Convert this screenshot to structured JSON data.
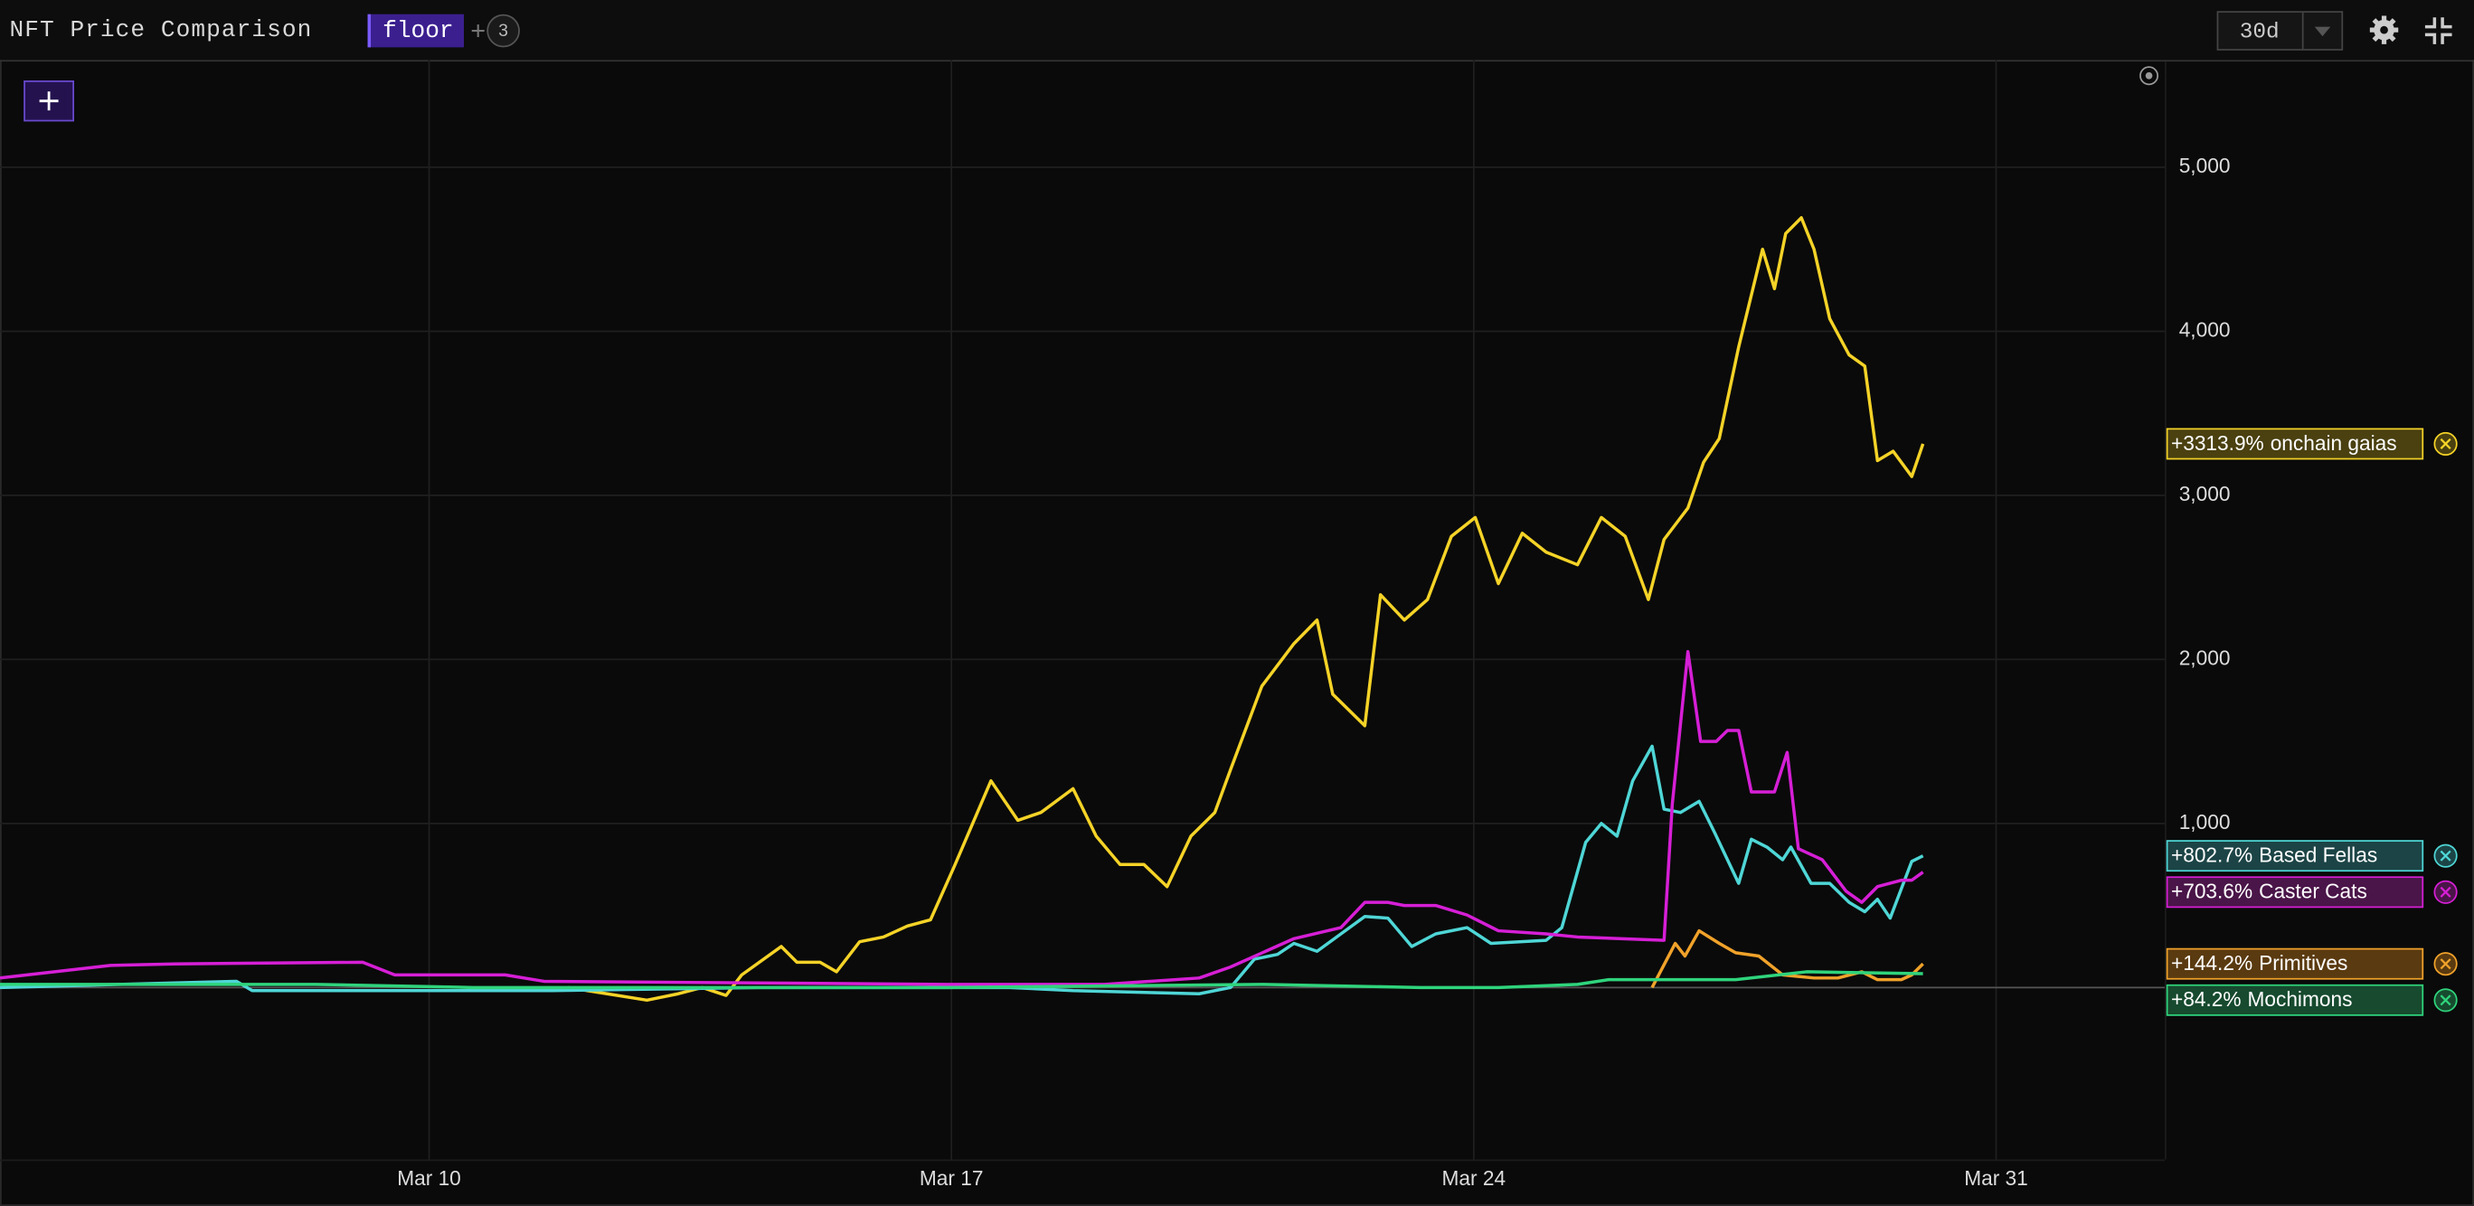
{
  "toolbar": {
    "title": "NFT Price Comparison",
    "metric": "floor",
    "count": 3,
    "range": "30d"
  },
  "chart_data": {
    "type": "line",
    "xlim": [
      4.25,
      33.26
    ],
    "ylim": [
      -1048,
      5654
    ],
    "xticks": [
      {
        "value": 10,
        "label": "Mar 10"
      },
      {
        "value": 17,
        "label": "Mar 17"
      },
      {
        "value": 24,
        "label": "Mar 24"
      },
      {
        "value": 31,
        "label": "Mar 31"
      }
    ],
    "yticks": [
      {
        "value": 1000,
        "label": "1,000"
      },
      {
        "value": 2000,
        "label": "2,000"
      },
      {
        "value": 3000,
        "label": "3,000"
      },
      {
        "value": 4000,
        "label": "4,000"
      },
      {
        "value": 5000,
        "label": "5,000"
      }
    ],
    "grid": true,
    "series": [
      {
        "name": "onchain gaias",
        "color": "#f5d327",
        "box": "#4a4010",
        "x": [
          11.86,
          12.92,
          13.34,
          13.66,
          13.98,
          14.19,
          14.72,
          14.93,
          15.24,
          15.46,
          15.77,
          16.09,
          16.41,
          16.72,
          17.04,
          17.53,
          17.89,
          18.2,
          18.63,
          18.94,
          19.26,
          19.58,
          19.89,
          20.21,
          20.53,
          20.74,
          21.16,
          21.59,
          21.9,
          22.11,
          22.54,
          22.75,
          23.07,
          23.38,
          23.7,
          24.02,
          24.33,
          24.65,
          24.97,
          25.39,
          25.71,
          26.03,
          26.34,
          26.55,
          26.87,
          27.08,
          27.29,
          27.55,
          27.87,
          28.03,
          28.18,
          28.39,
          28.56,
          28.77,
          29.03,
          29.24,
          29.41,
          29.62,
          29.87,
          30.02
        ],
        "values": [
          0,
          -77,
          -38,
          0,
          -48,
          77,
          250,
          154,
          154,
          96,
          279,
          308,
          375,
          413,
          740,
          1260,
          1019,
          1067,
          1212,
          923,
          750,
          750,
          615,
          923,
          1067,
          1327,
          1837,
          2096,
          2240,
          1788,
          1596,
          2394,
          2240,
          2365,
          2750,
          2865,
          2462,
          2769,
          2654,
          2577,
          2865,
          2750,
          2365,
          2731,
          2923,
          3202,
          3346,
          3904,
          4500,
          4260,
          4596,
          4692,
          4500,
          4077,
          3856,
          3788,
          3212,
          3269,
          3115,
          3313.9
        ],
        "value_labels": [
          null,
          null,
          null,
          null,
          null,
          null,
          null,
          null,
          null,
          null,
          null,
          null,
          null,
          null,
          null,
          null,
          null,
          null,
          null,
          null,
          null,
          null,
          null,
          null,
          null,
          null,
          null,
          null,
          null,
          null,
          null,
          null,
          null,
          null,
          null,
          null,
          null,
          null,
          null,
          null,
          null,
          null,
          null,
          null,
          null,
          null,
          null,
          null,
          null,
          null,
          null,
          null,
          null,
          null,
          null,
          null,
          null,
          null,
          null,
          "+3313.9%"
        ]
      },
      {
        "name": "Based Fellas",
        "color": "#4fd6d6",
        "box": "#1c4446",
        "x": [
          4.25,
          7.42,
          7.63,
          11.65,
          14.4,
          17.78,
          18.63,
          20.32,
          20.74,
          21.06,
          21.37,
          21.59,
          21.9,
          22.22,
          22.54,
          22.85,
          23.17,
          23.49,
          23.91,
          24.23,
          24.97,
          25.18,
          25.5,
          25.71,
          25.92,
          26.13,
          26.39,
          26.55,
          26.77,
          27.02,
          27.23,
          27.55,
          27.72,
          27.93,
          28.14,
          28.25,
          28.52,
          28.77,
          29.03,
          29.24,
          29.41,
          29.58,
          29.87,
          30.02
        ],
        "values": [
          0,
          38,
          -19,
          -19,
          0,
          0,
          -19,
          -38,
          0,
          173,
          202,
          269,
          221,
          327,
          433,
          423,
          250,
          327,
          365,
          269,
          288,
          365,
          885,
          1000,
          923,
          1260,
          1471,
          1087,
          1067,
          1135,
          942,
          635,
          904,
          856,
          779,
          856,
          635,
          635,
          519,
          462,
          538,
          423,
          769,
          802.7
        ],
        "value_labels": [
          null,
          null,
          null,
          null,
          null,
          null,
          null,
          null,
          null,
          null,
          null,
          null,
          null,
          null,
          null,
          null,
          null,
          null,
          null,
          null,
          null,
          null,
          null,
          null,
          null,
          null,
          null,
          null,
          null,
          null,
          null,
          null,
          null,
          null,
          null,
          null,
          null,
          null,
          null,
          null,
          null,
          null,
          null,
          "+802.7%"
        ]
      },
      {
        "name": "Caster Cats",
        "color": "#d61fd6",
        "box": "#4a1548",
        "x": [
          4.25,
          5.73,
          6.58,
          9.11,
          9.54,
          11.02,
          11.54,
          16.93,
          19.05,
          20.32,
          20.74,
          21.59,
          22.22,
          22.54,
          22.85,
          23.07,
          23.49,
          23.91,
          24.33,
          24.97,
          25.39,
          26.55,
          26.66,
          26.87,
          27.04,
          27.25,
          27.4,
          27.55,
          27.72,
          28.03,
          28.2,
          28.35,
          28.67,
          28.99,
          29.2,
          29.41,
          29.73,
          29.87,
          30.02
        ],
        "values": [
          58,
          135,
          144,
          154,
          77,
          77,
          38,
          19,
          19,
          58,
          125,
          298,
          365,
          519,
          519,
          500,
          500,
          442,
          346,
          327,
          308,
          288,
          1115,
          2048,
          1500,
          1500,
          1567,
          1567,
          1192,
          1192,
          1433,
          846,
          779,
          587,
          519,
          615,
          654,
          654,
          703.6
        ],
        "value_labels": [
          null,
          null,
          null,
          null,
          null,
          null,
          null,
          null,
          null,
          null,
          null,
          null,
          null,
          null,
          null,
          null,
          null,
          null,
          null,
          null,
          null,
          null,
          null,
          null,
          null,
          null,
          null,
          null,
          null,
          null,
          null,
          null,
          null,
          null,
          null,
          null,
          null,
          null,
          "+703.6%"
        ]
      },
      {
        "name": "Primitives",
        "color": "#f0a22a",
        "box": "#5a3a10",
        "x": [
          26.39,
          26.7,
          26.83,
          27.02,
          27.29,
          27.51,
          27.82,
          28.14,
          28.56,
          28.88,
          29.2,
          29.41,
          29.73,
          29.87,
          30.02
        ],
        "values": [
          0,
          269,
          192,
          346,
          269,
          212,
          192,
          77,
          58,
          58,
          96,
          48,
          48,
          77,
          144.2
        ],
        "value_labels": [
          null,
          null,
          null,
          null,
          null,
          null,
          null,
          null,
          null,
          null,
          null,
          null,
          null,
          null,
          "+144.2%"
        ]
      },
      {
        "name": "Mochimons",
        "color": "#2fd47c",
        "box": "#174a2e",
        "x": [
          4.25,
          8.48,
          10.59,
          16.93,
          21.16,
          23.28,
          24.33,
          25.39,
          25.81,
          27.51,
          28.46,
          30.02
        ],
        "values": [
          19,
          19,
          0,
          0,
          19,
          0,
          0,
          19,
          48,
          48,
          96,
          84.2
        ],
        "value_labels": [
          null,
          null,
          null,
          null,
          null,
          null,
          null,
          null,
          null,
          null,
          null,
          "+84.2%"
        ]
      }
    ]
  }
}
